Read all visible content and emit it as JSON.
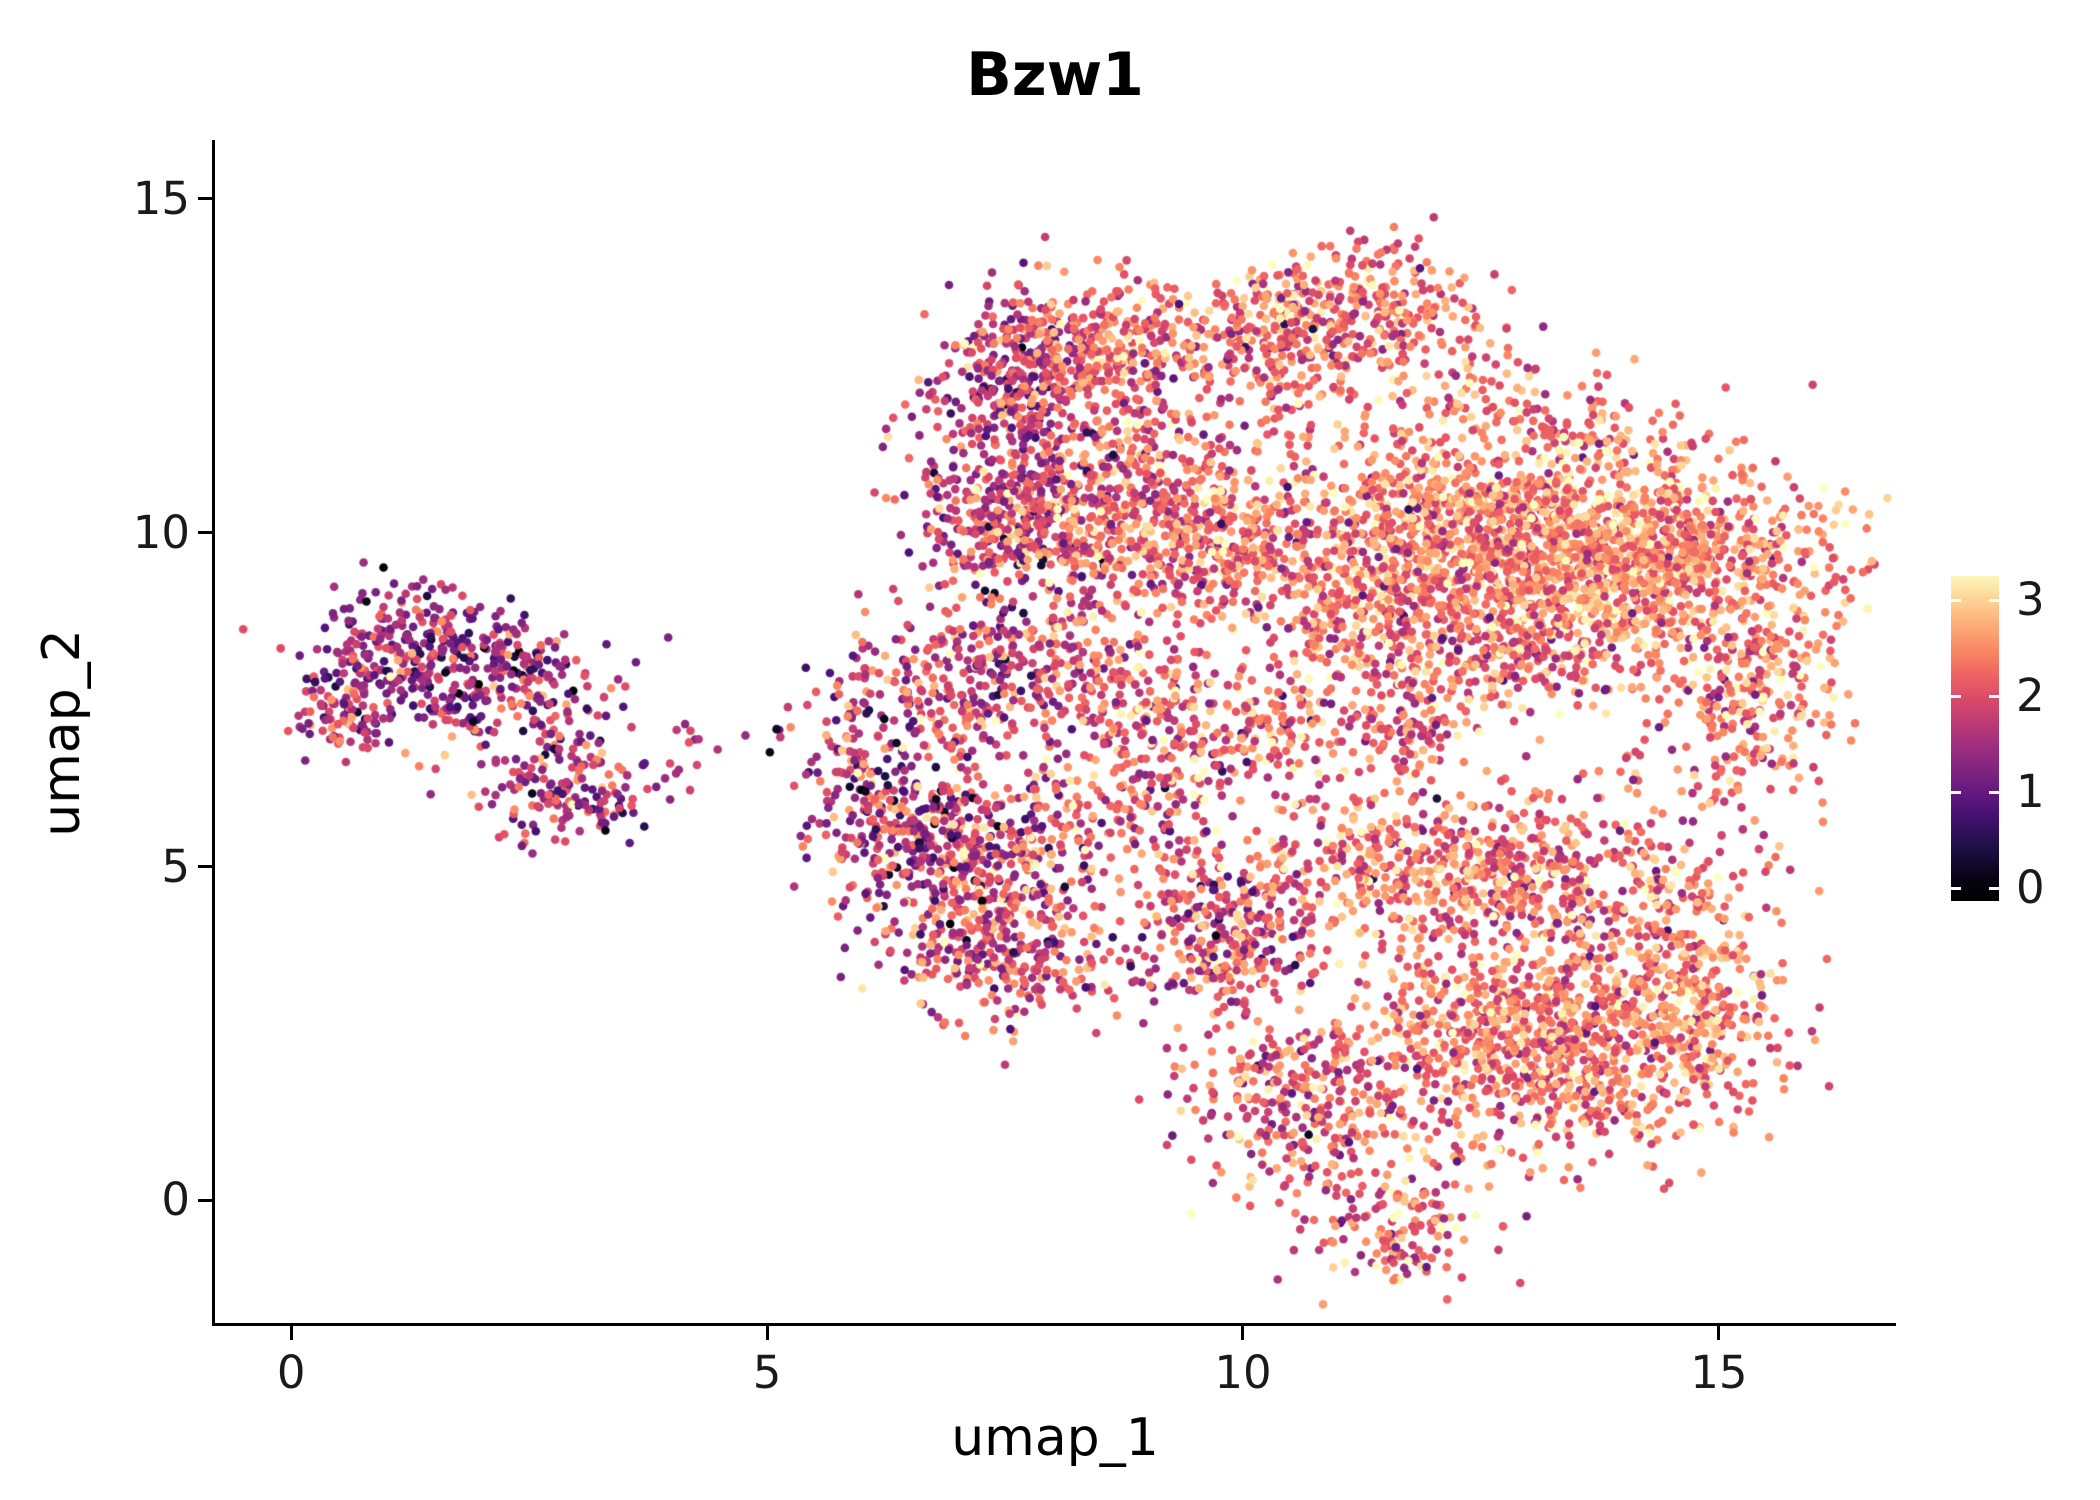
{
  "chart_data": {
    "type": "scatter",
    "title": "Bzw1",
    "xlabel": "umap_1",
    "ylabel": "umap_2",
    "xlim": [
      -0.8,
      16.85
    ],
    "ylim": [
      -1.85,
      15.85
    ],
    "x_ticks": [
      0,
      5,
      10,
      15
    ],
    "y_ticks": [
      0,
      5,
      10,
      15
    ],
    "grid": false,
    "background": "#ffffff",
    "axis_color": "#000000",
    "point_radius_px": 4.3,
    "seed": 42,
    "colorbar": {
      "label_values": [
        0,
        1,
        2,
        3
      ],
      "vmin": 0,
      "vmax": 3.3,
      "colormap": "magma",
      "stops": [
        "#000004",
        "#1c1044",
        "#4f127b",
        "#812581",
        "#b5367a",
        "#e55064",
        "#fb8761",
        "#fec287",
        "#fcfdbf"
      ],
      "legend_position": "right"
    },
    "representation": "gaussian_cluster_mixture",
    "clusters": [
      {
        "cx": 1.3,
        "cy": 8.3,
        "sx": 0.55,
        "sy": 0.45,
        "n": 260,
        "vmean": 1.4,
        "vsd": 0.6
      },
      {
        "cx": 2.2,
        "cy": 7.6,
        "sx": 0.65,
        "sy": 0.5,
        "n": 210,
        "vmean": 1.5,
        "vsd": 0.65
      },
      {
        "cx": 0.55,
        "cy": 7.3,
        "sx": 0.3,
        "sy": 0.3,
        "n": 90,
        "vmean": 1.7,
        "vsd": 0.55
      },
      {
        "cx": 2.95,
        "cy": 6.2,
        "sx": 0.5,
        "sy": 0.42,
        "n": 170,
        "vmean": 1.55,
        "vsd": 0.6
      },
      {
        "cx": 4.25,
        "cy": 6.8,
        "sx": 0.22,
        "sy": 0.15,
        "n": 6,
        "vmean": 1.8,
        "vsd": 0.5
      },
      {
        "cx": 5.0,
        "cy": 7.0,
        "sx": 0.18,
        "sy": 0.15,
        "n": 5,
        "vmean": 1.2,
        "vsd": 0.7
      },
      {
        "cx": 5.9,
        "cy": 6.6,
        "sx": 0.28,
        "sy": 0.95,
        "n": 140,
        "vmean": 1.8,
        "vsd": 0.7
      },
      {
        "cx": 7.0,
        "cy": 7.6,
        "sx": 0.5,
        "sy": 0.55,
        "n": 200,
        "vmean": 1.9,
        "vsd": 0.65
      },
      {
        "cx": 8.0,
        "cy": 8.1,
        "sx": 0.6,
        "sy": 0.45,
        "n": 180,
        "vmean": 2.0,
        "vsd": 0.6
      },
      {
        "cx": 7.2,
        "cy": 4.9,
        "sx": 0.6,
        "sy": 0.8,
        "n": 400,
        "vmean": 1.85,
        "vsd": 0.75
      },
      {
        "cx": 7.6,
        "cy": 3.6,
        "sx": 0.55,
        "sy": 0.5,
        "n": 220,
        "vmean": 2.0,
        "vsd": 0.6
      },
      {
        "cx": 6.5,
        "cy": 5.6,
        "sx": 0.4,
        "sy": 0.5,
        "n": 160,
        "vmean": 1.6,
        "vsd": 0.75
      },
      {
        "cx": 8.8,
        "cy": 5.8,
        "sx": 0.7,
        "sy": 0.55,
        "n": 170,
        "vmean": 2.05,
        "vsd": 0.6
      },
      {
        "cx": 9.2,
        "cy": 7.3,
        "sx": 0.6,
        "sy": 0.6,
        "n": 110,
        "vmean": 2.1,
        "vsd": 0.6
      },
      {
        "cx": 7.6,
        "cy": 12.4,
        "sx": 0.45,
        "sy": 0.6,
        "n": 260,
        "vmean": 1.7,
        "vsd": 0.7
      },
      {
        "cx": 8.6,
        "cy": 12.8,
        "sx": 0.6,
        "sy": 0.45,
        "n": 320,
        "vmean": 2.25,
        "vsd": 0.5
      },
      {
        "cx": 7.5,
        "cy": 10.2,
        "sx": 0.5,
        "sy": 0.65,
        "n": 300,
        "vmean": 1.75,
        "vsd": 0.7
      },
      {
        "cx": 8.9,
        "cy": 10.1,
        "sx": 0.85,
        "sy": 0.6,
        "n": 500,
        "vmean": 2.2,
        "vsd": 0.55
      },
      {
        "cx": 9.9,
        "cy": 9.6,
        "sx": 0.6,
        "sy": 0.5,
        "n": 200,
        "vmean": 2.3,
        "vsd": 0.5
      },
      {
        "cx": 8.3,
        "cy": 11.3,
        "sx": 0.8,
        "sy": 0.45,
        "n": 180,
        "vmean": 2.0,
        "vsd": 0.6
      },
      {
        "cx": 11.2,
        "cy": 13.3,
        "sx": 0.65,
        "sy": 0.5,
        "n": 300,
        "vmean": 2.25,
        "vsd": 0.5
      },
      {
        "cx": 10.3,
        "cy": 13.0,
        "sx": 0.4,
        "sy": 0.45,
        "n": 120,
        "vmean": 2.2,
        "vsd": 0.55
      },
      {
        "cx": 10.4,
        "cy": 11.9,
        "sx": 0.7,
        "sy": 0.65,
        "n": 110,
        "vmean": 2.3,
        "vsd": 0.5
      },
      {
        "cx": 13.0,
        "cy": 11.8,
        "sx": 1.3,
        "sy": 0.5,
        "n": 220,
        "vmean": 2.4,
        "vsd": 0.5,
        "rot": -20
      },
      {
        "cx": 13.8,
        "cy": 9.6,
        "sx": 1.1,
        "sy": 0.7,
        "n": 1400,
        "vmean": 2.5,
        "vsd": 0.45
      },
      {
        "cx": 12.2,
        "cy": 10.3,
        "sx": 0.8,
        "sy": 0.6,
        "n": 450,
        "vmean": 2.4,
        "vsd": 0.5
      },
      {
        "cx": 11.3,
        "cy": 9.3,
        "sx": 0.7,
        "sy": 0.7,
        "n": 300,
        "vmean": 2.35,
        "vsd": 0.55
      },
      {
        "cx": 12.6,
        "cy": 8.2,
        "sx": 1.1,
        "sy": 0.5,
        "n": 350,
        "vmean": 2.3,
        "vsd": 0.55
      },
      {
        "cx": 15.4,
        "cy": 7.6,
        "sx": 0.45,
        "sy": 0.55,
        "n": 220,
        "vmean": 2.3,
        "vsd": 0.6
      },
      {
        "cx": 10.0,
        "cy": 7.1,
        "sx": 1.0,
        "sy": 0.4,
        "n": 200,
        "vmean": 2.15,
        "vsd": 0.6
      },
      {
        "cx": 11.8,
        "cy": 6.9,
        "sx": 0.3,
        "sy": 0.25,
        "n": 70,
        "vmean": 2.2,
        "vsd": 0.55
      },
      {
        "cx": 11.4,
        "cy": 5.6,
        "sx": 1.0,
        "sy": 0.55,
        "n": 110,
        "vmean": 2.2,
        "vsd": 0.6
      },
      {
        "cx": 14.8,
        "cy": 6.2,
        "sx": 0.7,
        "sy": 0.5,
        "n": 60,
        "vmean": 2.3,
        "vsd": 0.55
      },
      {
        "cx": 9.8,
        "cy": 4.0,
        "sx": 0.5,
        "sy": 0.6,
        "n": 280,
        "vmean": 2.1,
        "vsd": 0.65
      },
      {
        "cx": 12.6,
        "cy": 4.8,
        "sx": 1.2,
        "sy": 0.6,
        "n": 650,
        "vmean": 2.3,
        "vsd": 0.55
      },
      {
        "cx": 13.2,
        "cy": 2.4,
        "sx": 1.0,
        "sy": 0.85,
        "n": 1100,
        "vmean": 2.35,
        "vsd": 0.5
      },
      {
        "cx": 10.6,
        "cy": 1.5,
        "sx": 0.6,
        "sy": 0.75,
        "n": 300,
        "vmean": 2.15,
        "vsd": 0.6
      },
      {
        "cx": 11.6,
        "cy": -0.45,
        "sx": 0.45,
        "sy": 0.4,
        "n": 140,
        "vmean": 2.1,
        "vsd": 0.6
      },
      {
        "cx": 14.8,
        "cy": 3.4,
        "sx": 0.35,
        "sy": 0.9,
        "n": 220,
        "vmean": 2.4,
        "vsd": 0.5,
        "rot": 8
      }
    ]
  }
}
